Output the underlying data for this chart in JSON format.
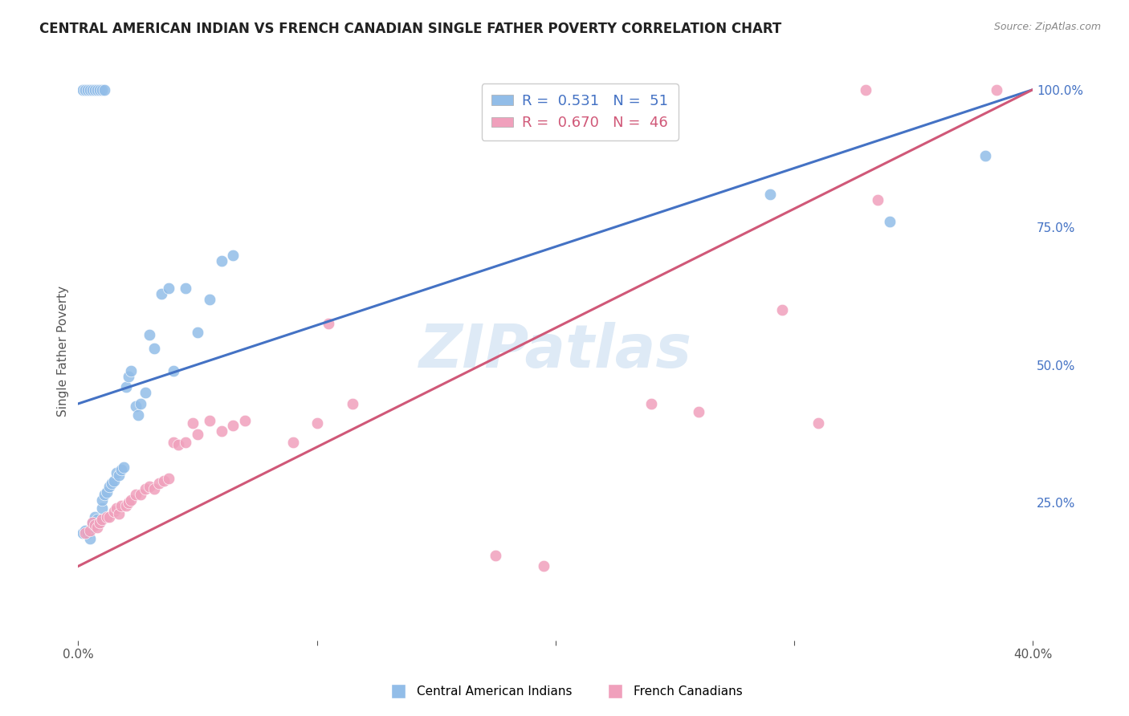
{
  "title": "CENTRAL AMERICAN INDIAN VS FRENCH CANADIAN SINGLE FATHER POVERTY CORRELATION CHART",
  "source": "Source: ZipAtlas.com",
  "ylabel": "Single Father Poverty",
  "x_min": 0.0,
  "x_max": 0.4,
  "y_min": 0.0,
  "y_max": 1.05,
  "y_ticks_right": [
    0.25,
    0.5,
    0.75,
    1.0
  ],
  "y_tick_labels_right": [
    "25.0%",
    "50.0%",
    "75.0%",
    "100.0%"
  ],
  "legend_r_blue": "R = 0.531",
  "legend_n_blue": "N = 51",
  "legend_r_pink": "R = 0.670",
  "legend_n_pink": "N = 46",
  "legend_label_blue": "Central American Indians",
  "legend_label_pink": "French Canadians",
  "blue_color": "#92BDE8",
  "pink_color": "#F0A0BC",
  "blue_line_color": "#4472C4",
  "pink_line_color": "#D05878",
  "watermark_text": "ZIPatlas",
  "blue_scatter_x": [
    0.002,
    0.003,
    0.004,
    0.005,
    0.006,
    0.006,
    0.007,
    0.007,
    0.008,
    0.009,
    0.01,
    0.01,
    0.011,
    0.012,
    0.013,
    0.014,
    0.015,
    0.016,
    0.017,
    0.018,
    0.019,
    0.02,
    0.021,
    0.022,
    0.024,
    0.025,
    0.026,
    0.028,
    0.03,
    0.032,
    0.035,
    0.038,
    0.04,
    0.045,
    0.05,
    0.055,
    0.06,
    0.065,
    0.002,
    0.003,
    0.004,
    0.005,
    0.006,
    0.007,
    0.008,
    0.009,
    0.01,
    0.011,
    0.29,
    0.34,
    0.38
  ],
  "blue_scatter_y": [
    0.195,
    0.2,
    0.195,
    0.185,
    0.205,
    0.215,
    0.21,
    0.225,
    0.22,
    0.215,
    0.24,
    0.255,
    0.265,
    0.27,
    0.28,
    0.285,
    0.29,
    0.305,
    0.3,
    0.31,
    0.315,
    0.46,
    0.48,
    0.49,
    0.425,
    0.41,
    0.43,
    0.45,
    0.555,
    0.53,
    0.63,
    0.64,
    0.49,
    0.64,
    0.56,
    0.62,
    0.69,
    0.7,
    1.0,
    1.0,
    1.0,
    1.0,
    1.0,
    1.0,
    1.0,
    1.0,
    1.0,
    1.0,
    0.81,
    0.76,
    0.88
  ],
  "pink_scatter_x": [
    0.003,
    0.005,
    0.006,
    0.007,
    0.008,
    0.009,
    0.01,
    0.012,
    0.013,
    0.015,
    0.016,
    0.017,
    0.018,
    0.02,
    0.021,
    0.022,
    0.024,
    0.026,
    0.028,
    0.03,
    0.032,
    0.034,
    0.036,
    0.038,
    0.04,
    0.042,
    0.045,
    0.048,
    0.05,
    0.055,
    0.06,
    0.065,
    0.07,
    0.09,
    0.1,
    0.105,
    0.115,
    0.175,
    0.195,
    0.24,
    0.26,
    0.295,
    0.31,
    0.33,
    0.335,
    0.385
  ],
  "pink_scatter_y": [
    0.195,
    0.2,
    0.215,
    0.21,
    0.205,
    0.215,
    0.22,
    0.225,
    0.225,
    0.235,
    0.24,
    0.23,
    0.245,
    0.245,
    0.25,
    0.255,
    0.265,
    0.265,
    0.275,
    0.28,
    0.275,
    0.285,
    0.29,
    0.295,
    0.36,
    0.355,
    0.36,
    0.395,
    0.375,
    0.4,
    0.38,
    0.39,
    0.4,
    0.36,
    0.395,
    0.575,
    0.43,
    0.155,
    0.135,
    0.43,
    0.415,
    0.6,
    0.395,
    1.0,
    0.8,
    1.0
  ],
  "blue_line_x": [
    0.0,
    0.4
  ],
  "blue_line_y": [
    0.43,
    1.0
  ],
  "pink_line_x": [
    0.0,
    0.4
  ],
  "pink_line_y": [
    0.135,
    1.0
  ],
  "grid_color": "#DDDDDD",
  "background_color": "#FFFFFF"
}
